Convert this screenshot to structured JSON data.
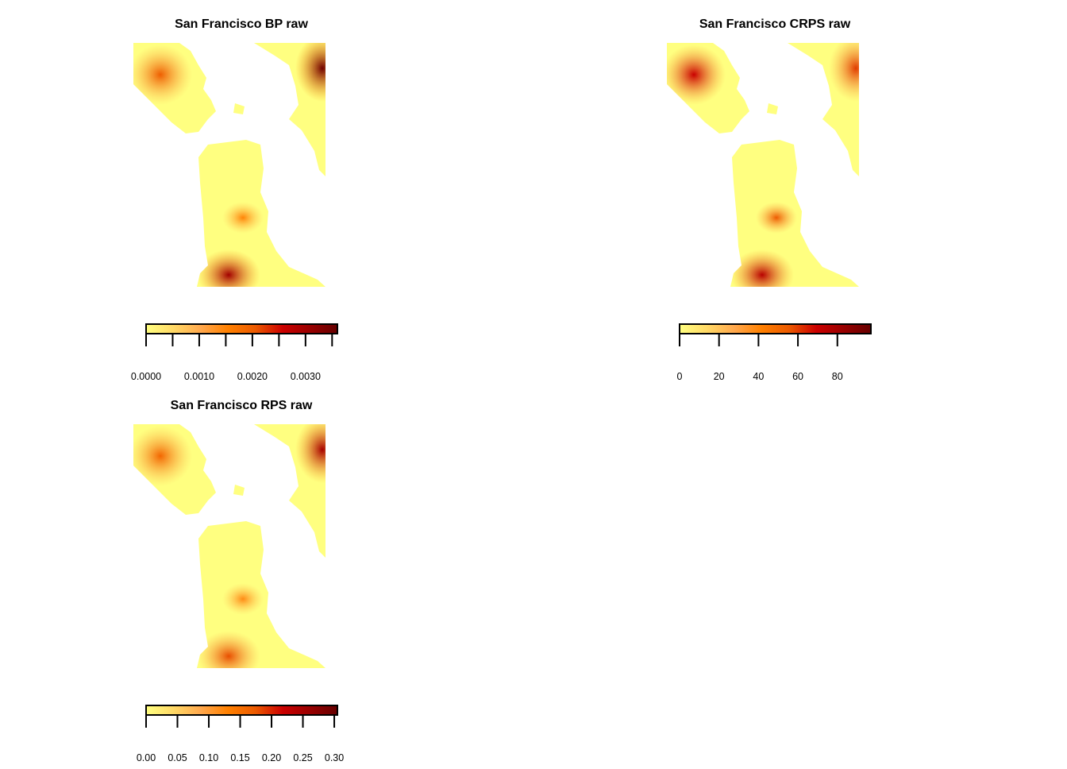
{
  "colors": {
    "scale": [
      "#ffff80",
      "#ffd966",
      "#ffa84d",
      "#ff8000",
      "#ec5a00",
      "#cc0000",
      "#990000",
      "#660000"
    ],
    "water": "#ffffff"
  },
  "chart_data": [
    {
      "type": "heatmap",
      "title": "San Francisco BP raw",
      "xlabel": "",
      "ylabel": "",
      "zlim": [
        0,
        0.0036
      ],
      "legend": {
        "placement": "bottom",
        "ticks": [
          0,
          0.0005,
          0.001,
          0.0015,
          0.002,
          0.0025,
          0.003,
          0.0035
        ],
        "tick_labels": [
          {
            "value": 0,
            "label": "0.0000"
          },
          {
            "value": 0.001,
            "label": "0.0010"
          },
          {
            "value": 0.002,
            "label": "0.0020"
          },
          {
            "value": 0.003,
            "label": "0.0030"
          }
        ]
      },
      "hotspots": [
        {
          "region": "northwest",
          "level": 0.002
        },
        {
          "region": "northeast",
          "level": 0.0035
        },
        {
          "region": "central-south",
          "level": 0.0015
        },
        {
          "region": "south",
          "level": 0.003
        }
      ]
    },
    {
      "type": "heatmap",
      "title": "San Francisco CRPS raw",
      "xlabel": "",
      "ylabel": "",
      "zlim": [
        0,
        97
      ],
      "legend": {
        "placement": "bottom",
        "ticks": [
          0,
          20,
          40,
          60,
          80
        ],
        "tick_labels": [
          {
            "value": 0,
            "label": "0"
          },
          {
            "value": 20,
            "label": "20"
          },
          {
            "value": 40,
            "label": "40"
          },
          {
            "value": 60,
            "label": "60"
          },
          {
            "value": 80,
            "label": "80"
          }
        ]
      },
      "hotspots": [
        {
          "region": "northwest",
          "level": 70
        },
        {
          "region": "northeast",
          "level": 60
        },
        {
          "region": "central-south",
          "level": 55
        },
        {
          "region": "south",
          "level": 75
        }
      ]
    },
    {
      "type": "heatmap",
      "title": "San Francisco RPS raw",
      "xlabel": "",
      "ylabel": "",
      "zlim": [
        0,
        0.305
      ],
      "legend": {
        "placement": "bottom",
        "ticks": [
          0,
          0.05,
          0.1,
          0.15,
          0.2,
          0.25,
          0.3
        ],
        "tick_labels": [
          {
            "value": 0,
            "label": "0.00"
          },
          {
            "value": 0.05,
            "label": "0.05"
          },
          {
            "value": 0.1,
            "label": "0.10"
          },
          {
            "value": 0.15,
            "label": "0.15"
          },
          {
            "value": 0.2,
            "label": "0.20"
          },
          {
            "value": 0.25,
            "label": "0.25"
          },
          {
            "value": 0.3,
            "label": "0.30"
          }
        ]
      },
      "hotspots": [
        {
          "region": "northwest",
          "level": 0.16
        },
        {
          "region": "northeast",
          "level": 0.25
        },
        {
          "region": "central-south",
          "level": 0.12
        },
        {
          "region": "south",
          "level": 0.18
        }
      ]
    }
  ]
}
